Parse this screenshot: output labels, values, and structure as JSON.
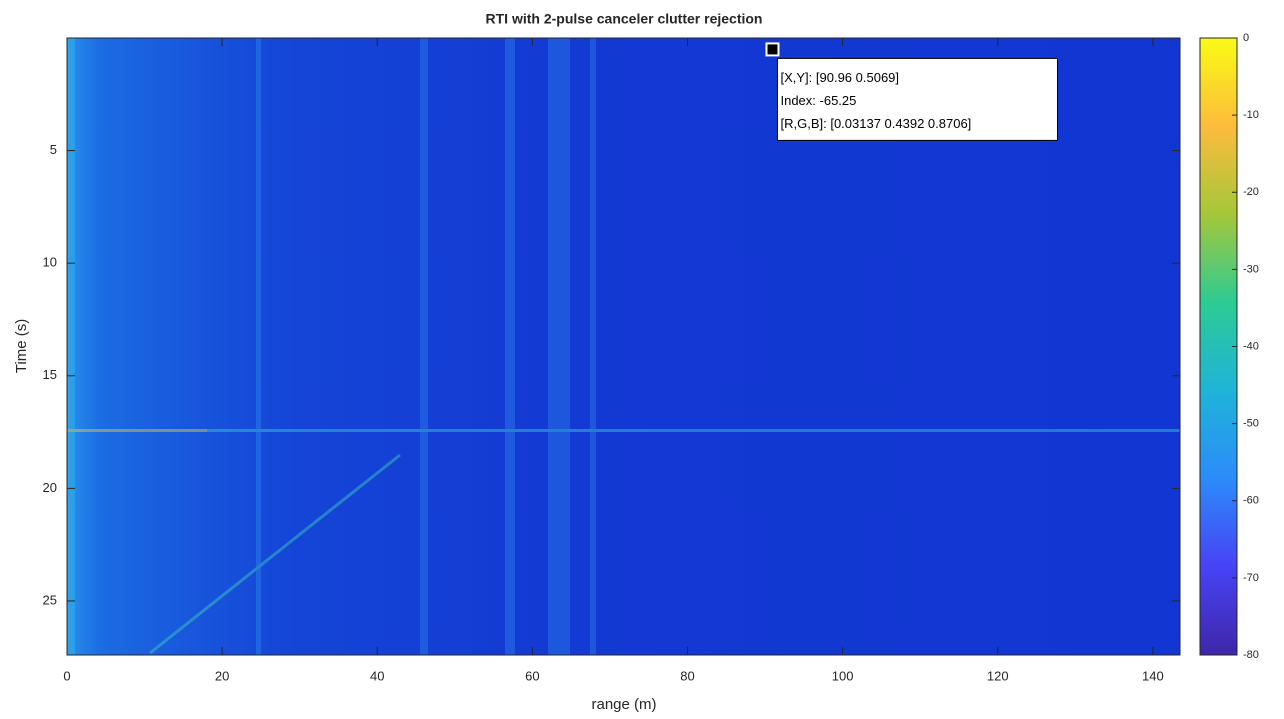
{
  "chart_data": {
    "type": "heatmap",
    "title": "RTI with 2-pulse canceler clutter rejection",
    "x_label": "range (m)",
    "y_label": "Time (s)",
    "xlim": [
      0,
      143.5
    ],
    "ylim": [
      0,
      27.4
    ],
    "y_reversed": true,
    "xticks": [
      0,
      20,
      40,
      60,
      80,
      100,
      120,
      140
    ],
    "yticks": [
      5,
      10,
      15,
      20,
      25
    ],
    "clim": [
      -80,
      0
    ],
    "cticks": [
      0,
      -10,
      -20,
      -30,
      -40,
      -50,
      -60,
      -70,
      -80
    ],
    "colormap": [
      "#3e26a8",
      "#4743f5",
      "#2c8bfa",
      "#1fb4d8",
      "#2dcb93",
      "#a5c73b",
      "#fcbc3c",
      "#f9fb15"
    ],
    "datatip": {
      "x": 90.96,
      "y": 0.5069,
      "lines": [
        "[X,Y]: [90.96 0.5069]",
        "Index: -65.25",
        "[R,G,B]: [0.03137 0.4392 0.8706]"
      ]
    }
  }
}
